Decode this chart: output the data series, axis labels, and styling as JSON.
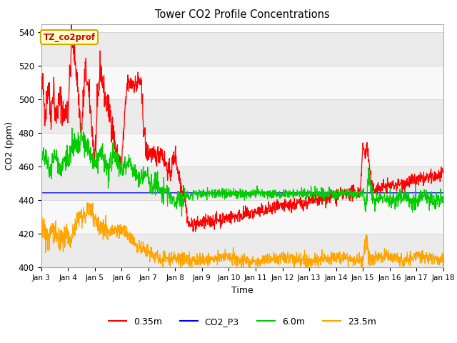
{
  "title": "Tower CO2 Profile Concentrations",
  "xlabel": "Time",
  "ylabel": "CO2 (ppm)",
  "ylim": [
    400,
    545
  ],
  "annotation_text": "TZ_co2prof",
  "annotation_bg": "#FFFFCC",
  "annotation_border": "#CCAA00",
  "fig_bg": "#FFFFFF",
  "plot_bg": "#FFFFFF",
  "series": {
    "red": {
      "label": "0.35m",
      "color": "#FF0000",
      "lw": 0.9
    },
    "blue": {
      "label": "CO2_P3",
      "color": "#0000FF",
      "lw": 0.9
    },
    "green": {
      "label": "6.0m",
      "color": "#00CC00",
      "lw": 0.9
    },
    "orange": {
      "label": "23.5m",
      "color": "#FFA500",
      "lw": 0.9
    }
  },
  "xtick_labels": [
    "Jan 3",
    "Jan 4",
    "Jan 5",
    "Jan 6",
    "Jan 7",
    "Jan 8",
    "Jan 9",
    "Jan 10",
    "Jan 11",
    "Jan 12",
    "Jan 13",
    "Jan 14",
    "Jan 15",
    "Jan 16",
    "Jan 17",
    "Jan 18"
  ],
  "ytick_values": [
    400,
    420,
    440,
    460,
    480,
    500,
    520,
    540
  ],
  "grid_colors": [
    "#E8E8E8",
    "#F8F8F8"
  ]
}
